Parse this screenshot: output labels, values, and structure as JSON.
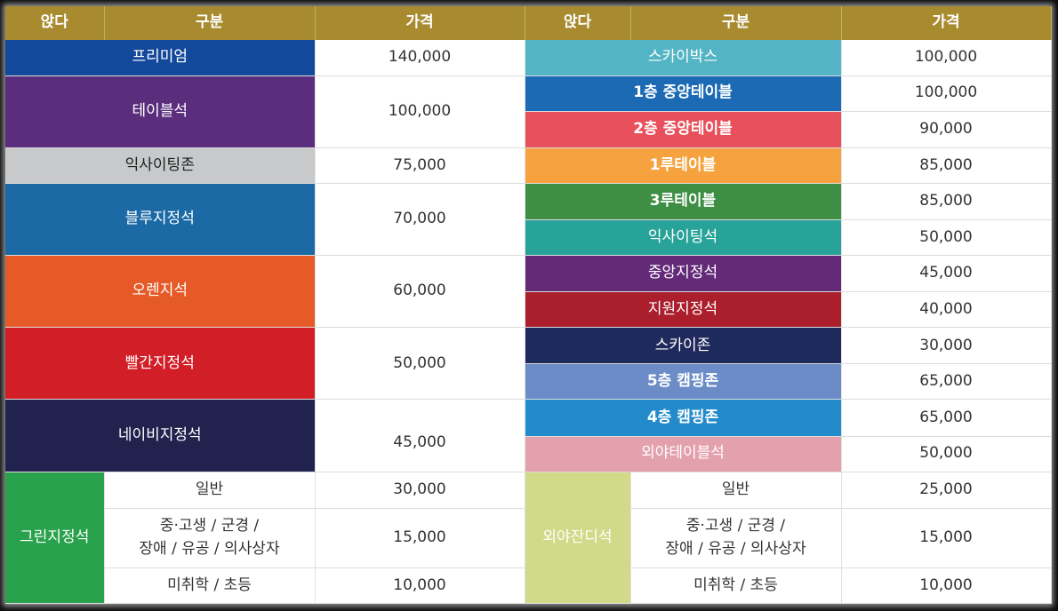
{
  "header": {
    "seat": "앉다",
    "category": "구분",
    "price": "가격"
  },
  "left": {
    "premium": {
      "name": "프리미엄",
      "price": "140,000",
      "color": "#13499a"
    },
    "table": {
      "name": "테이블석",
      "price": "100,000",
      "color": "#5a2e7d"
    },
    "exciting": {
      "name": "익사이팅존",
      "price": "75,000",
      "color": "#c7c9cb"
    },
    "blue": {
      "name": "블루지정석",
      "price": "70,000",
      "color": "#1b6aa6"
    },
    "orange": {
      "name": "오렌지석",
      "price": "60,000",
      "color": "#e55a27"
    },
    "red": {
      "name": "빨간지정석",
      "price": "50,000",
      "color": "#d21f27"
    },
    "navy": {
      "name": "네이비지정석",
      "price": "45,000",
      "color": "#22224f"
    },
    "green": {
      "name": "그린지정석",
      "color": "#2aa24d",
      "rows": [
        {
          "label": "일반",
          "price": "30,000"
        },
        {
          "label_line1": "중·고생 / 군경 /",
          "label_line2": "장애 / 유공 / 의사상자",
          "price": "15,000"
        },
        {
          "label": "미취학 / 초등",
          "price": "10,000"
        }
      ]
    }
  },
  "right": {
    "rows": [
      {
        "name": "스카이박스",
        "price": "100,000",
        "color": "#52b4c4",
        "bold": false
      },
      {
        "name": "1층 중앙테이블",
        "price": "100,000",
        "color": "#1b6ab3",
        "bold": true
      },
      {
        "name": "2층 중앙테이블",
        "price": "90,000",
        "color": "#e8505b",
        "bold": true
      },
      {
        "name": "1루테이블",
        "price": "85,000",
        "color": "#f5a23f",
        "bold": true
      },
      {
        "name": "3루테이블",
        "price": "85,000",
        "color": "#3e8e43",
        "bold": true
      },
      {
        "name": "익사이팅석",
        "price": "50,000",
        "color": "#28a39a",
        "bold": false
      },
      {
        "name": "중앙지정석",
        "price": "45,000",
        "color": "#632a78",
        "bold": false
      },
      {
        "name": "지원지정석",
        "price": "40,000",
        "color": "#ab1f2c",
        "bold": false
      },
      {
        "name": "스카이존",
        "price": "30,000",
        "color": "#1f2a5c",
        "bold": false
      },
      {
        "name": "5층 캠핑존",
        "price": "65,000",
        "color": "#6b8cc6",
        "bold": true
      },
      {
        "name": "4층 캠핑존",
        "price": "65,000",
        "color": "#238acb",
        "bold": true
      },
      {
        "name": "외야테이블석",
        "price": "50,000",
        "color": "#e3a0ad",
        "bold": false
      }
    ],
    "outfield": {
      "name": "외야잔디석",
      "color": "#d0da88",
      "rows": [
        {
          "label": "일반",
          "price": "25,000"
        },
        {
          "label_line1": "중·고생 / 군경 /",
          "label_line2": "장애 / 유공 / 의사상자",
          "price": "15,000"
        },
        {
          "label": "미취학 / 초등",
          "price": "10,000"
        }
      ]
    }
  }
}
